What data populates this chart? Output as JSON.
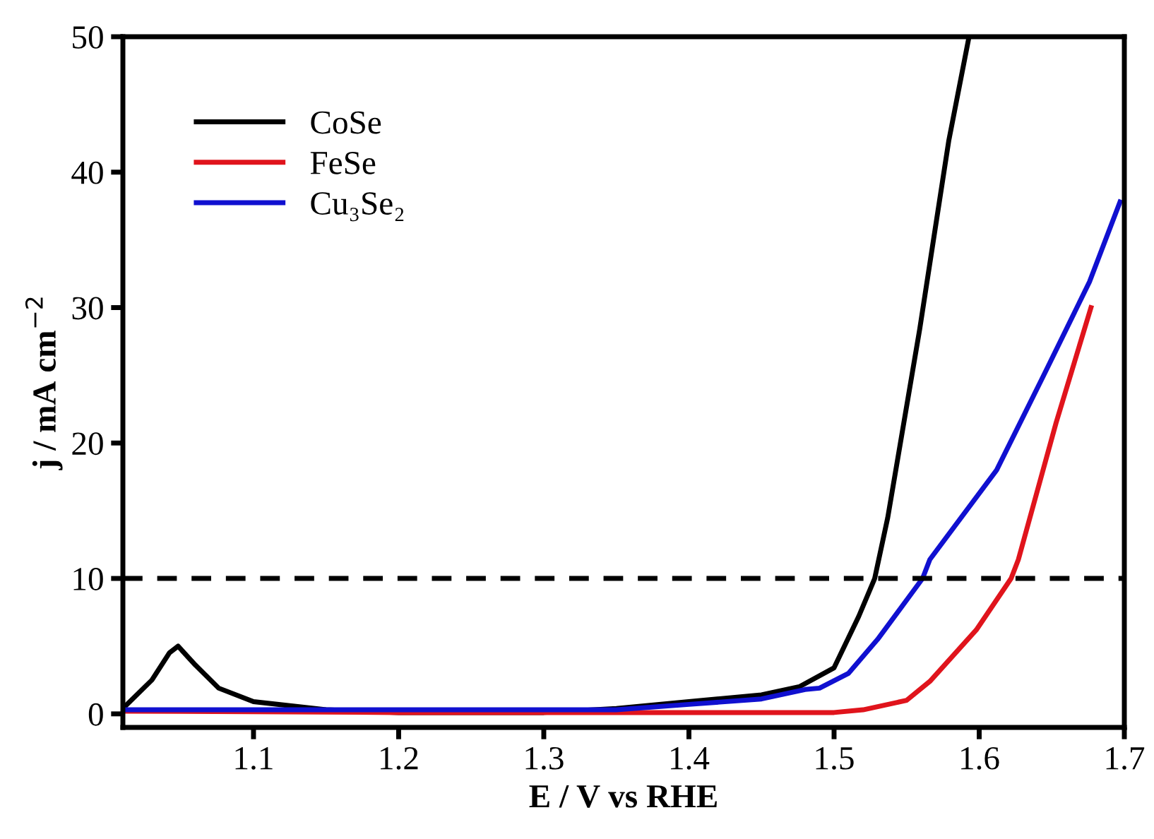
{
  "chart_data": {
    "type": "line",
    "xlabel": "E / V vs RHE",
    "ylabel": "j / mA cm$^{−2}$",
    "xlim": [
      1.01,
      1.7
    ],
    "ylim": [
      -1,
      50
    ],
    "xticks": [
      1.1,
      1.2,
      1.3,
      1.4,
      1.5,
      1.6,
      1.7
    ],
    "yticks": [
      0,
      10,
      20,
      30,
      40,
      50
    ],
    "grid": false,
    "legend": "top left",
    "line_style": "solid",
    "marker": "none",
    "series": [
      {
        "name": "CoSe",
        "color": "#000000",
        "x": [
          1.01,
          1.03,
          1.042,
          1.048,
          1.06,
          1.076,
          1.1,
          1.15,
          1.2,
          1.3,
          1.35,
          1.4,
          1.45,
          1.476,
          1.5,
          1.517,
          1.528,
          1.537,
          1.559,
          1.579,
          1.593
        ],
        "values": [
          0.4,
          2.5,
          4.5,
          5.0,
          3.6,
          1.9,
          0.9,
          0.3,
          0.1,
          0.1,
          0.4,
          0.9,
          1.4,
          2.0,
          3.4,
          7.2,
          10,
          14.5,
          28.4,
          42.3,
          50
        ]
      },
      {
        "name": "FeSe",
        "color": "#e0141c",
        "x": [
          1.01,
          1.2,
          1.4,
          1.5,
          1.52,
          1.55,
          1.566,
          1.598,
          1.622,
          1.627,
          1.653,
          1.677
        ],
        "values": [
          0.2,
          0.1,
          0.1,
          0.1,
          0.3,
          1.0,
          2.4,
          6.2,
          10,
          11.4,
          21.5,
          30.0
        ]
      },
      {
        "name": "Cu₃Se₂",
        "color": "#1010d0",
        "x": [
          1.01,
          1.2,
          1.35,
          1.4,
          1.45,
          1.48,
          1.49,
          1.51,
          1.53,
          1.561,
          1.566,
          1.612,
          1.644,
          1.676,
          1.697
        ],
        "values": [
          0.3,
          0.3,
          0.3,
          0.7,
          1.1,
          1.8,
          1.9,
          3.0,
          5.5,
          10,
          11.4,
          18.0,
          24.9,
          31.9,
          37.8
        ]
      }
    ],
    "ref_lines": [
      {
        "axis": "y",
        "value": 10,
        "color": "#000000",
        "line_style": "dashed"
      }
    ]
  }
}
